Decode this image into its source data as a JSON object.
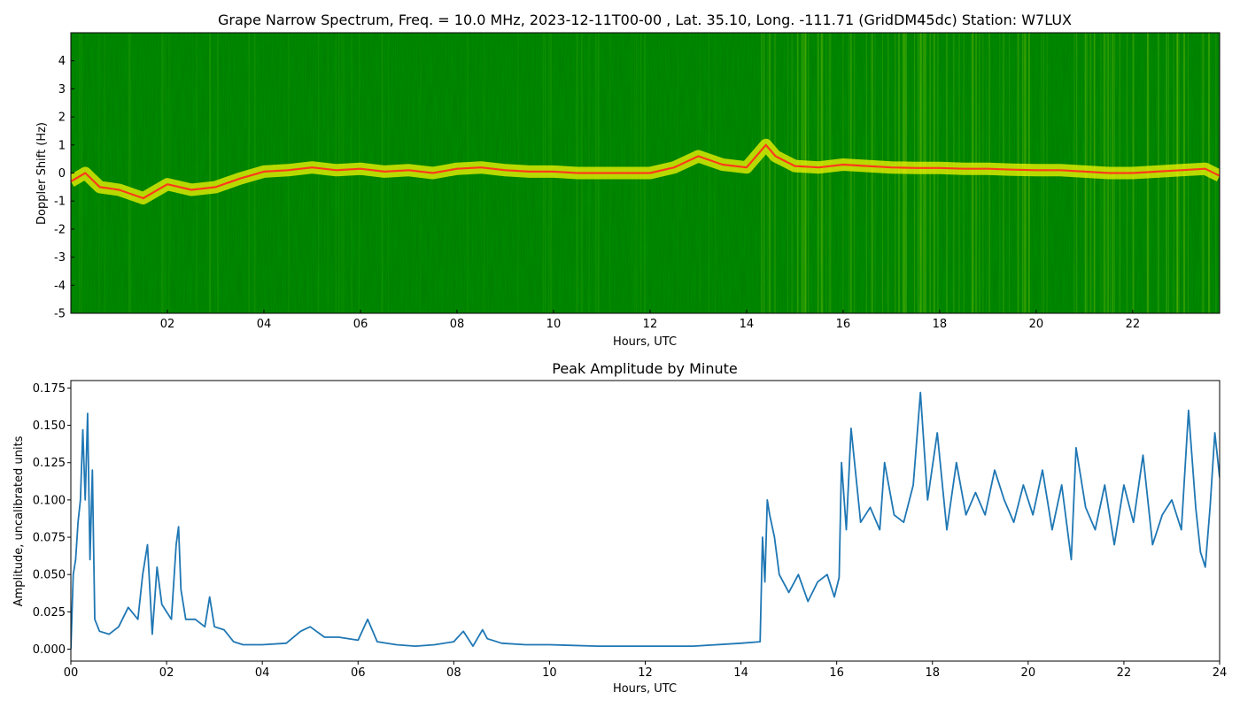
{
  "colors": {
    "background": "#ffffff",
    "spectrogram_base": "#007a00",
    "spectrogram_bright": "#f5f500",
    "spectrogram_peak": "#ff3a1a",
    "amplitude_line": "#1f77b4",
    "axis": "#000000"
  },
  "chart_data": [
    {
      "type": "heatmap",
      "title": "Grape Narrow Spectrum, Freq. = 10.0 MHz, 2023-12-11T00-00 , Lat.  35.10, Long. -111.71 (GridDM45dc) Station: W7LUX",
      "xlabel": "Hours, UTC",
      "ylabel": "Doppler Shift (Hz)",
      "xlim": [
        0,
        23.8
      ],
      "ylim": [
        -5,
        5
      ],
      "xticks": [
        "02",
        "04",
        "06",
        "08",
        "10",
        "12",
        "14",
        "16",
        "18",
        "20",
        "22"
      ],
      "yticks": [
        "4",
        "3",
        "2",
        "1",
        "0",
        "-1",
        "-2",
        "-3",
        "-4",
        "-5"
      ],
      "colormap": "green-yellow-red",
      "trace": {
        "x": [
          0.0,
          0.3,
          0.6,
          1.0,
          1.5,
          2.0,
          2.5,
          3.0,
          3.5,
          4.0,
          4.5,
          5.0,
          5.5,
          6.0,
          6.5,
          7.0,
          7.5,
          8.0,
          8.5,
          9.0,
          9.5,
          10.0,
          10.5,
          11.0,
          11.5,
          12.0,
          12.5,
          13.0,
          13.5,
          14.0,
          14.4,
          14.6,
          15.0,
          15.5,
          16.0,
          16.5,
          17.0,
          17.5,
          18.0,
          18.5,
          19.0,
          19.5,
          20.0,
          20.5,
          21.0,
          21.5,
          22.0,
          22.5,
          23.0,
          23.5,
          23.8
        ],
        "y": [
          -0.3,
          0.0,
          -0.5,
          -0.6,
          -0.9,
          -0.4,
          -0.6,
          -0.5,
          -0.2,
          0.05,
          0.1,
          0.2,
          0.1,
          0.15,
          0.05,
          0.1,
          0.0,
          0.15,
          0.2,
          0.1,
          0.05,
          0.05,
          0.0,
          0.0,
          0.0,
          0.0,
          0.2,
          0.6,
          0.3,
          0.2,
          1.0,
          0.6,
          0.25,
          0.2,
          0.3,
          0.25,
          0.2,
          0.18,
          0.18,
          0.15,
          0.15,
          0.12,
          0.1,
          0.1,
          0.05,
          0.0,
          0.0,
          0.05,
          0.1,
          0.15,
          -0.1
        ]
      }
    },
    {
      "type": "line",
      "title": "Peak Amplitude by Minute",
      "xlabel": "Hours, UTC",
      "ylabel": "Amplitude, uncalibrated units",
      "xlim": [
        0,
        24
      ],
      "ylim": [
        -0.008,
        0.18
      ],
      "xticks": [
        "00",
        "02",
        "04",
        "06",
        "08",
        "10",
        "12",
        "14",
        "16",
        "18",
        "20",
        "22",
        "24"
      ],
      "yticks": [
        "0.000",
        "0.025",
        "0.050",
        "0.075",
        "0.100",
        "0.125",
        "0.150",
        "0.175"
      ],
      "series": [
        {
          "x": [
            0.0,
            0.05,
            0.1,
            0.15,
            0.2,
            0.25,
            0.3,
            0.35,
            0.4,
            0.45,
            0.5,
            0.6,
            0.8,
            1.0,
            1.2,
            1.4,
            1.5,
            1.6,
            1.7,
            1.8,
            1.9,
            2.0,
            2.1,
            2.2,
            2.25,
            2.3,
            2.4,
            2.6,
            2.8,
            2.9,
            3.0,
            3.2,
            3.4,
            3.6,
            4.0,
            4.5,
            4.8,
            5.0,
            5.3,
            5.6,
            6.0,
            6.2,
            6.4,
            6.8,
            7.2,
            7.6,
            8.0,
            8.2,
            8.4,
            8.6,
            8.7,
            9.0,
            9.5,
            10.0,
            11.0,
            12.0,
            13.0,
            14.0,
            14.4,
            14.45,
            14.5,
            14.55,
            14.6,
            14.7,
            14.8,
            15.0,
            15.2,
            15.4,
            15.6,
            15.8,
            15.95,
            16.05,
            16.1,
            16.2,
            16.3,
            16.5,
            16.7,
            16.9,
            17.0,
            17.2,
            17.4,
            17.6,
            17.75,
            17.9,
            18.1,
            18.3,
            18.5,
            18.7,
            18.9,
            19.1,
            19.3,
            19.5,
            19.7,
            19.9,
            20.1,
            20.3,
            20.5,
            20.7,
            20.9,
            21.0,
            21.2,
            21.4,
            21.6,
            21.8,
            22.0,
            22.2,
            22.4,
            22.6,
            22.8,
            23.0,
            23.2,
            23.35,
            23.5,
            23.6,
            23.7,
            23.8,
            23.9,
            24.0
          ],
          "y": [
            0.0,
            0.05,
            0.06,
            0.085,
            0.1,
            0.147,
            0.1,
            0.158,
            0.06,
            0.12,
            0.02,
            0.012,
            0.01,
            0.015,
            0.028,
            0.02,
            0.05,
            0.07,
            0.01,
            0.055,
            0.03,
            0.025,
            0.02,
            0.07,
            0.082,
            0.04,
            0.02,
            0.02,
            0.015,
            0.035,
            0.015,
            0.013,
            0.005,
            0.003,
            0.003,
            0.004,
            0.012,
            0.015,
            0.008,
            0.008,
            0.006,
            0.02,
            0.005,
            0.003,
            0.002,
            0.003,
            0.005,
            0.012,
            0.002,
            0.013,
            0.007,
            0.004,
            0.003,
            0.003,
            0.002,
            0.002,
            0.002,
            0.004,
            0.005,
            0.075,
            0.045,
            0.1,
            0.09,
            0.075,
            0.05,
            0.038,
            0.05,
            0.032,
            0.045,
            0.05,
            0.035,
            0.048,
            0.125,
            0.08,
            0.148,
            0.085,
            0.095,
            0.08,
            0.125,
            0.09,
            0.085,
            0.11,
            0.172,
            0.1,
            0.145,
            0.08,
            0.125,
            0.09,
            0.105,
            0.09,
            0.12,
            0.1,
            0.085,
            0.11,
            0.09,
            0.12,
            0.08,
            0.11,
            0.06,
            0.135,
            0.095,
            0.08,
            0.11,
            0.07,
            0.11,
            0.085,
            0.13,
            0.07,
            0.09,
            0.1,
            0.08,
            0.16,
            0.095,
            0.065,
            0.055,
            0.095,
            0.145,
            0.115
          ]
        }
      ]
    }
  ]
}
